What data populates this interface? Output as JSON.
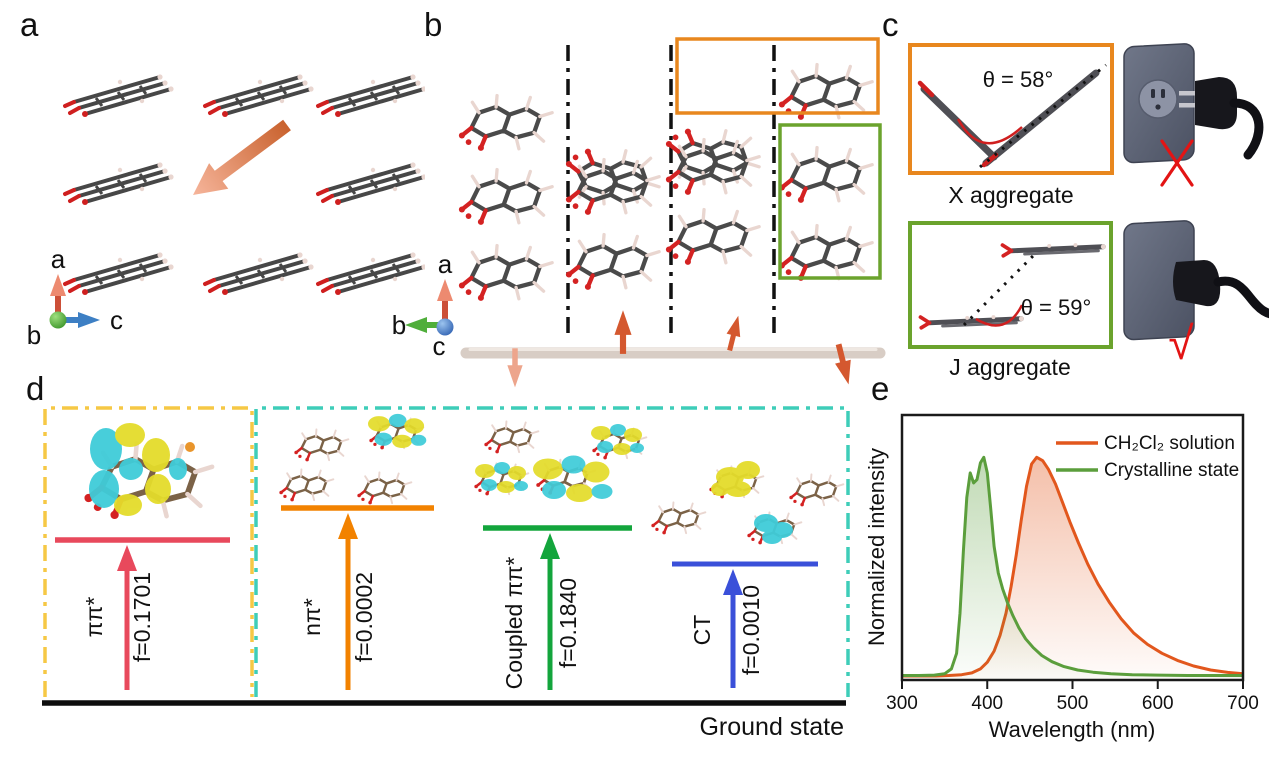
{
  "panels": {
    "a": "a",
    "b": "b",
    "c": "c",
    "d": "d",
    "e": "e"
  },
  "panel_a": {
    "axis_up": "a",
    "axis_right": "c",
    "axis_front": "b"
  },
  "panel_b": {
    "axis_up": "a",
    "axis_left": "b",
    "axis_front": "c",
    "x_box_color": "#e8871e",
    "j_box_color": "#6ba32d"
  },
  "panel_c": {
    "x_aggregate": {
      "angle": "θ = 58°",
      "caption": "X aggregate",
      "mark": "✕",
      "mark_color": "#e31414",
      "box_color": "#e8871e"
    },
    "j_aggregate": {
      "angle": "θ = 59°",
      "caption": "J aggregate",
      "mark": "√",
      "mark_color": "#e31414",
      "box_color": "#6ba32d"
    }
  },
  "panel_d": {
    "ground_state": "Ground state",
    "monomer_box_color": "#f6c845",
    "aggregate_box_color": "#3ecdb9",
    "states": [
      {
        "name": "ππ*",
        "f": "f=0.1701",
        "color": "#e8495c"
      },
      {
        "name": "nπ*",
        "f": "f=0.0002",
        "color": "#f28200"
      },
      {
        "name": "Coupled ππ*",
        "f": "f=0.1840",
        "color": "#13a53c"
      },
      {
        "name": "CT",
        "f": "f=0.0010",
        "color": "#3a50d9"
      }
    ]
  },
  "chart_data": {
    "type": "line",
    "title": "",
    "xlabel": "Wavelength (nm)",
    "ylabel": "Normalized intensity",
    "xlim": [
      300,
      700
    ],
    "ylim": [
      0,
      1.19
    ],
    "xticks": [
      300,
      400,
      500,
      600,
      700
    ],
    "grid": false,
    "legend_position": "top-right",
    "series": [
      {
        "name": "CH₂Cl₂ solution",
        "color": "#e2571d",
        "x": [
          300,
          320,
          340,
          355,
          370,
          382,
          392,
          400,
          408,
          415,
          422,
          428,
          434,
          440,
          446,
          452,
          458,
          465,
          472,
          480,
          488,
          497,
          507,
          518,
          530,
          543,
          557,
          572,
          588,
          605,
          623,
          642,
          662,
          682,
          700
        ],
        "y": [
          0.018,
          0.018,
          0.018,
          0.02,
          0.024,
          0.032,
          0.05,
          0.08,
          0.13,
          0.2,
          0.3,
          0.42,
          0.56,
          0.72,
          0.87,
          0.97,
          1.0,
          0.985,
          0.945,
          0.88,
          0.8,
          0.71,
          0.615,
          0.52,
          0.43,
          0.35,
          0.275,
          0.21,
          0.16,
          0.12,
          0.088,
          0.063,
          0.045,
          0.034,
          0.028
        ]
      },
      {
        "name": "Crystalline state",
        "color": "#5b9e3c",
        "x": [
          300,
          320,
          338,
          350,
          358,
          364,
          368,
          372,
          376,
          380,
          384,
          388,
          392,
          396,
          400,
          404,
          408,
          413,
          418,
          424,
          430,
          437,
          445,
          454,
          464,
          476,
          490,
          506,
          524,
          545,
          570,
          600,
          635,
          670,
          700
        ],
        "y": [
          0.02,
          0.02,
          0.022,
          0.028,
          0.05,
          0.12,
          0.3,
          0.58,
          0.82,
          0.93,
          0.885,
          0.9,
          0.975,
          1.0,
          0.93,
          0.77,
          0.6,
          0.48,
          0.41,
          0.345,
          0.29,
          0.235,
          0.185,
          0.145,
          0.11,
          0.082,
          0.06,
          0.045,
          0.035,
          0.028,
          0.024,
          0.022,
          0.02,
          0.02,
          0.02
        ]
      }
    ]
  }
}
